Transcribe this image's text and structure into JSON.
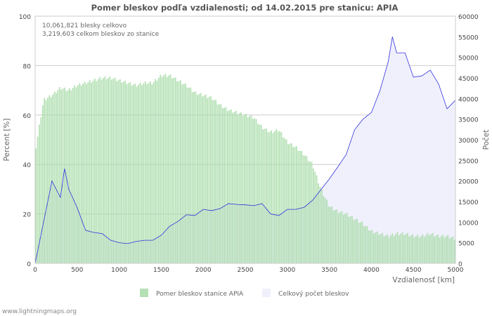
{
  "chart_data": {
    "type": "bar",
    "title": "Pomer bleskov podľa vzdialenosti; od 14.02.2015 pre stanicu: APIA",
    "annotations": [
      "10,061,821 blesky celkovo",
      "3,219,603 celkom bleskov zo stanice"
    ],
    "xlabel": "Vzdialenosť   [km]",
    "ylabel": "Percent   [%]",
    "y2label": "Počet",
    "xlim": [
      0,
      5000
    ],
    "ylim": [
      0,
      100
    ],
    "y2lim": [
      0,
      60000
    ],
    "xticks": [
      0,
      500,
      1000,
      1500,
      2000,
      2500,
      3000,
      3500,
      4000,
      4500,
      5000
    ],
    "yticks": [
      0,
      20,
      40,
      60,
      80,
      100
    ],
    "y2ticks": [
      0,
      5000,
      10000,
      15000,
      20000,
      25000,
      30000,
      35000,
      40000,
      45000,
      50000,
      55000,
      60000
    ],
    "grid": true,
    "legend_position": "bottom",
    "series": [
      {
        "name": "Pomer bleskov stanice APIA",
        "axis": "left",
        "type": "bar",
        "color": "#a8dca8",
        "x": [
          0,
          100,
          200,
          300,
          400,
          500,
          600,
          700,
          800,
          900,
          1000,
          1100,
          1200,
          1300,
          1400,
          1500,
          1600,
          1700,
          1800,
          1900,
          2000,
          2100,
          2200,
          2300,
          2400,
          2500,
          2600,
          2700,
          2800,
          2900,
          3000,
          3100,
          3200,
          3300,
          3400,
          3500,
          3600,
          3700,
          3800,
          3900,
          4000,
          4100,
          4200,
          4300,
          4400,
          4500,
          4600,
          4700,
          4800,
          4900,
          5000
        ],
        "values": [
          45,
          66,
          68,
          71,
          70,
          72,
          73,
          74,
          75,
          75,
          74,
          73,
          72,
          73,
          73,
          76,
          76,
          74,
          72,
          69,
          68,
          67,
          64,
          62,
          61,
          60,
          59,
          55,
          53,
          54,
          49,
          47,
          44,
          40,
          30,
          23,
          21,
          20,
          18,
          16,
          13,
          12,
          11,
          12,
          12,
          11,
          11,
          12,
          11,
          11,
          10
        ]
      },
      {
        "name": "Celkový počet bleskov",
        "axis": "right",
        "type": "area",
        "color": "#f0f0fc",
        "line_color": "#3333dd",
        "x": [
          0,
          100,
          200,
          300,
          350,
          400,
          500,
          600,
          700,
          800,
          900,
          1000,
          1100,
          1200,
          1300,
          1400,
          1500,
          1600,
          1700,
          1800,
          1900,
          2000,
          2100,
          2200,
          2300,
          2400,
          2500,
          2600,
          2700,
          2800,
          2900,
          3000,
          3100,
          3200,
          3300,
          3400,
          3500,
          3600,
          3700,
          3800,
          3900,
          4000,
          4100,
          4200,
          4250,
          4300,
          4400,
          4500,
          4600,
          4700,
          4800,
          4900,
          5000
        ],
        "values": [
          0,
          10000,
          20000,
          16000,
          23000,
          18000,
          13500,
          8000,
          7500,
          7200,
          5600,
          5000,
          4800,
          5300,
          5600,
          5600,
          6800,
          9000,
          10200,
          11800,
          11600,
          13100,
          12800,
          13300,
          14500,
          14300,
          14200,
          14000,
          14500,
          12000,
          11600,
          13100,
          13100,
          13600,
          15300,
          17900,
          20500,
          23400,
          26400,
          32400,
          35000,
          36600,
          41800,
          48900,
          55000,
          51100,
          51100,
          45200,
          45500,
          46900,
          43500,
          37500,
          39600
        ]
      }
    ]
  },
  "footer": "www.lightningmaps.org"
}
